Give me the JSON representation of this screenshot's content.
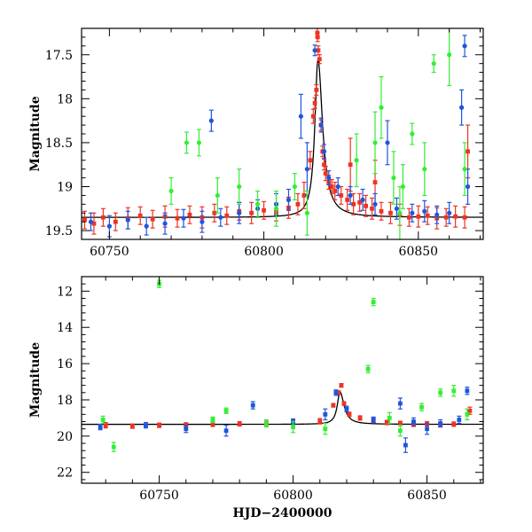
{
  "colors": {
    "green": "#33ee33",
    "blue": "#1f55dd",
    "red": "#ee3322",
    "model": "#000000",
    "axis": "#000000"
  },
  "chart_data": [
    {
      "type": "scatter",
      "panel": "top",
      "xlabel": "",
      "ylabel": "Magnitude",
      "xlim": [
        60741,
        60871
      ],
      "ylim": [
        19.6,
        17.2
      ],
      "y_inverted": true,
      "xticks": [
        60750,
        60800,
        60850
      ],
      "yticks": [
        17.5,
        18,
        18.5,
        19,
        19.5
      ],
      "grid": false,
      "model_curve": {
        "baseline": 19.35,
        "peak_x": 60817.5,
        "peak_mag": 17.55,
        "rise_scale_days": 1.2,
        "decay_scale_days": 1.8
      },
      "series": [
        {
          "color_key": "red",
          "marker": "square",
          "points": [
            [
              60742,
              19.38,
              0.1
            ],
            [
              60745,
              19.42,
              0.12
            ],
            [
              60748,
              19.35,
              0.1
            ],
            [
              60752,
              19.4,
              0.1
            ],
            [
              60756,
              19.36,
              0.12
            ],
            [
              60760,
              19.33,
              0.1
            ],
            [
              60764,
              19.37,
              0.1
            ],
            [
              60768,
              19.34,
              0.12
            ],
            [
              60772,
              19.36,
              0.1
            ],
            [
              60776,
              19.32,
              0.1
            ],
            [
              60780,
              19.35,
              0.12
            ],
            [
              60784,
              19.3,
              0.1
            ],
            [
              60788,
              19.33,
              0.1
            ],
            [
              60792,
              19.28,
              0.1
            ],
            [
              60796,
              19.3,
              0.12
            ],
            [
              60800,
              19.27,
              0.1
            ],
            [
              60804,
              19.29,
              0.1
            ],
            [
              60808,
              19.24,
              0.12
            ],
            [
              60811,
              19.2,
              0.12
            ],
            [
              60813,
              19.1,
              0.15
            ],
            [
              60815,
              18.7,
              0.1
            ],
            [
              60816,
              18.2,
              0.08
            ],
            [
              60816.5,
              18.05,
              0.06
            ],
            [
              60817,
              17.9,
              0.06
            ],
            [
              60817.3,
              17.25,
              0.05
            ],
            [
              60817.6,
              17.45,
              0.05
            ],
            [
              60818,
              17.55,
              0.05
            ],
            [
              60818.5,
              18.3,
              0.06
            ],
            [
              60819,
              18.6,
              0.06
            ],
            [
              60819.5,
              18.75,
              0.06
            ],
            [
              60820,
              18.85,
              0.08
            ],
            [
              60821,
              18.95,
              0.08
            ],
            [
              60822,
              19.0,
              0.08
            ],
            [
              60823,
              19.05,
              0.1
            ],
            [
              60825,
              19.1,
              0.1
            ],
            [
              60827,
              19.15,
              0.12
            ],
            [
              60829,
              19.2,
              0.12
            ],
            [
              60831,
              19.18,
              0.1
            ],
            [
              60833,
              19.22,
              0.12
            ],
            [
              60835,
              19.25,
              0.12
            ],
            [
              60838,
              19.28,
              0.1
            ],
            [
              60841,
              19.3,
              0.12
            ],
            [
              60844,
              19.32,
              0.12
            ],
            [
              60847,
              19.35,
              0.1
            ],
            [
              60850,
              19.34,
              0.12
            ],
            [
              60853,
              19.33,
              0.1
            ],
            [
              60856,
              19.36,
              0.12
            ],
            [
              60859,
              19.35,
              0.1
            ],
            [
              60862,
              19.34,
              0.12
            ],
            [
              60865,
              19.35,
              0.12
            ],
            [
              60866,
              18.6,
              0.3
            ],
            [
              60817.4,
              17.3,
              0.05
            ],
            [
              60828,
              18.75,
              0.3
            ],
            [
              60836,
              18.95,
              0.25
            ]
          ]
        },
        {
          "color_key": "blue",
          "marker": "circle",
          "points": [
            [
              60744,
              19.4,
              0.1
            ],
            [
              60750,
              19.45,
              0.12
            ],
            [
              60756,
              19.38,
              0.1
            ],
            [
              60762,
              19.45,
              0.1
            ],
            [
              60768,
              19.42,
              0.12
            ],
            [
              60774,
              19.36,
              0.1
            ],
            [
              60780,
              19.4,
              0.12
            ],
            [
              60783,
              18.25,
              0.12
            ],
            [
              60786,
              19.35,
              0.1
            ],
            [
              60792,
              19.3,
              0.12
            ],
            [
              60798,
              19.25,
              0.1
            ],
            [
              60804,
              19.2,
              0.12
            ],
            [
              60808,
              19.15,
              0.12
            ],
            [
              60812,
              18.2,
              0.25
            ],
            [
              60814,
              18.8,
              0.3
            ],
            [
              60816.5,
              17.45,
              0.06
            ],
            [
              60818.5,
              18.3,
              0.08
            ],
            [
              60819.5,
              18.6,
              0.08
            ],
            [
              60821,
              18.9,
              0.08
            ],
            [
              60824,
              19.0,
              0.1
            ],
            [
              60828,
              19.1,
              0.1
            ],
            [
              60832,
              19.15,
              0.12
            ],
            [
              60836,
              19.2,
              0.12
            ],
            [
              60840,
              18.5,
              0.25
            ],
            [
              60843,
              19.25,
              0.12
            ],
            [
              60848,
              19.3,
              0.1
            ],
            [
              60852,
              19.28,
              0.12
            ],
            [
              60856,
              19.32,
              0.1
            ],
            [
              60860,
              19.3,
              0.12
            ],
            [
              60864,
              18.1,
              0.2
            ],
            [
              60865,
              17.4,
              0.12
            ],
            [
              60866,
              19.0,
              0.2
            ]
          ]
        },
        {
          "color_key": "green",
          "marker": "circle",
          "points": [
            [
              60770,
              19.05,
              0.15
            ],
            [
              60775,
              18.5,
              0.12
            ],
            [
              60779,
              18.5,
              0.15
            ],
            [
              60785,
              19.1,
              0.2
            ],
            [
              60792,
              19.0,
              0.2
            ],
            [
              60798,
              19.2,
              0.15
            ],
            [
              60804,
              19.25,
              0.2
            ],
            [
              60810,
              19.0,
              0.15
            ],
            [
              60814,
              19.3,
              0.25
            ],
            [
              60830,
              18.7,
              0.3
            ],
            [
              60836,
              18.5,
              0.35
            ],
            [
              60838,
              18.1,
              0.35
            ],
            [
              60842,
              18.9,
              0.3
            ],
            [
              60845,
              19.0,
              0.25
            ],
            [
              60848,
              18.4,
              0.12
            ],
            [
              60852,
              18.8,
              0.3
            ],
            [
              60855,
              17.6,
              0.1
            ],
            [
              60860,
              17.5,
              0.35
            ],
            [
              60865,
              18.8,
              0.3
            ],
            [
              60844,
              19.3,
              0.3
            ]
          ]
        }
      ]
    },
    {
      "type": "scatter",
      "panel": "bottom",
      "xlabel": "HJD−2400000",
      "ylabel": "Magnitude",
      "xlim": [
        60721,
        60871
      ],
      "ylim": [
        22.6,
        11.2
      ],
      "y_inverted": true,
      "xticks": [
        60750,
        60800,
        60850
      ],
      "yticks": [
        12,
        14,
        16,
        18,
        20,
        22
      ],
      "grid": false,
      "model_curve": {
        "baseline": 19.35,
        "peak_x": 60817.5,
        "peak_mag": 17.55,
        "rise_scale_days": 1.2,
        "decay_scale_days": 1.8
      },
      "series": [
        {
          "color_key": "red",
          "marker": "square",
          "points": [
            [
              60730,
              19.4,
              0.15
            ],
            [
              60740,
              19.45,
              0.12
            ],
            [
              60750,
              19.4,
              0.12
            ],
            [
              60760,
              19.38,
              0.12
            ],
            [
              60770,
              19.35,
              0.12
            ],
            [
              60780,
              19.32,
              0.12
            ],
            [
              60790,
              19.3,
              0.12
            ],
            [
              60800,
              19.25,
              0.12
            ],
            [
              60810,
              19.18,
              0.15
            ],
            [
              60815,
              18.3,
              0.1
            ],
            [
              60817,
              17.6,
              0.1
            ],
            [
              60818,
              17.2,
              0.1
            ],
            [
              60819,
              18.2,
              0.1
            ],
            [
              60821,
              18.8,
              0.12
            ],
            [
              60825,
              19.0,
              0.12
            ],
            [
              60830,
              19.15,
              0.12
            ],
            [
              60835,
              19.25,
              0.12
            ],
            [
              60840,
              19.3,
              0.12
            ],
            [
              60845,
              19.35,
              0.12
            ],
            [
              60850,
              19.32,
              0.12
            ],
            [
              60855,
              19.35,
              0.12
            ],
            [
              60860,
              19.34,
              0.12
            ],
            [
              60866,
              18.6,
              0.2
            ]
          ]
        },
        {
          "color_key": "blue",
          "marker": "square",
          "points": [
            [
              60728,
              19.5,
              0.15
            ],
            [
              60745,
              19.4,
              0.15
            ],
            [
              60760,
              19.6,
              0.2
            ],
            [
              60775,
              19.7,
              0.3
            ],
            [
              60785,
              18.3,
              0.2
            ],
            [
              60800,
              19.2,
              0.15
            ],
            [
              60812,
              18.8,
              0.3
            ],
            [
              60816,
              17.6,
              0.15
            ],
            [
              60820,
              18.5,
              0.15
            ],
            [
              60830,
              19.1,
              0.15
            ],
            [
              60840,
              18.2,
              0.3
            ],
            [
              60842,
              20.5,
              0.4
            ],
            [
              60845,
              19.2,
              0.2
            ],
            [
              60850,
              19.6,
              0.3
            ],
            [
              60855,
              19.3,
              0.2
            ],
            [
              60862,
              19.1,
              0.2
            ],
            [
              60865,
              17.5,
              0.2
            ]
          ]
        },
        {
          "color_key": "green",
          "marker": "square",
          "points": [
            [
              60729,
              19.1,
              0.2
            ],
            [
              60733,
              20.6,
              0.25
            ],
            [
              60750,
              11.6,
              0.2
            ],
            [
              60770,
              19.1,
              0.15
            ],
            [
              60775,
              18.6,
              0.15
            ],
            [
              60790,
              19.3,
              0.2
            ],
            [
              60800,
              19.5,
              0.3
            ],
            [
              60812,
              19.6,
              0.3
            ],
            [
              60828,
              16.3,
              0.2
            ],
            [
              60830,
              12.6,
              0.2
            ],
            [
              60836,
              19.0,
              0.3
            ],
            [
              60840,
              19.7,
              0.3
            ],
            [
              60848,
              18.4,
              0.2
            ],
            [
              60855,
              17.6,
              0.2
            ],
            [
              60860,
              17.5,
              0.3
            ],
            [
              60865,
              18.8,
              0.3
            ]
          ]
        }
      ]
    }
  ]
}
